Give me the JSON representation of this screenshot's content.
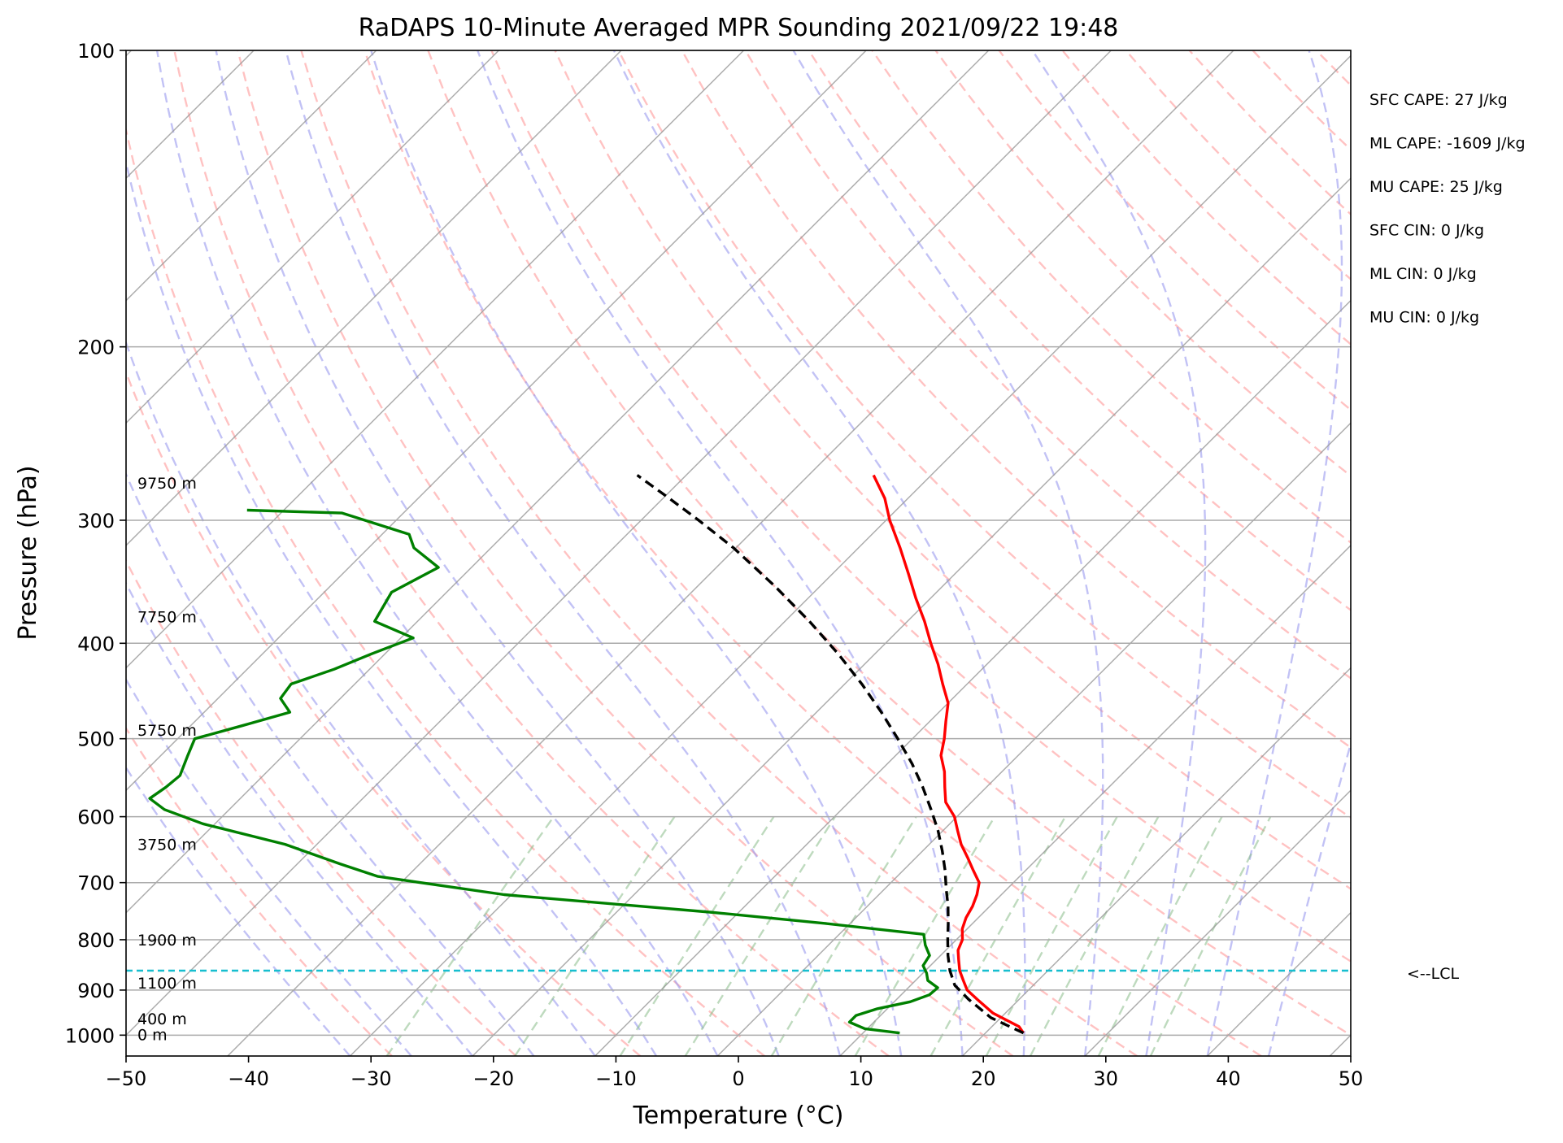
{
  "chart_data": {
    "type": "line",
    "title": "RaDAPS 10-Minute Averaged MPR Sounding 2021/09/22 19:48",
    "xlabel": "Temperature (°C)",
    "ylabel": "Pressure (hPa)",
    "xlim": [
      -50,
      50
    ],
    "ylim": [
      1050,
      100
    ],
    "y_scale": "log",
    "skew": "skew-T log-P",
    "x_ticks": [
      "−50",
      "−40",
      "−30",
      "−20",
      "−10",
      "0",
      "10",
      "20",
      "30",
      "40",
      "50"
    ],
    "y_ticks": [
      "100",
      "200",
      "300",
      "400",
      "500",
      "600",
      "700",
      "800",
      "900",
      "1000"
    ],
    "grid": true,
    "series": [
      {
        "color": "#ff0000",
        "pressure": [
          995,
          980,
          950,
          920,
          900,
          880,
          860,
          840,
          820,
          800,
          780,
          760,
          740,
          720,
          700,
          680,
          660,
          640,
          620,
          600,
          580,
          560,
          540,
          520,
          500,
          480,
          460,
          440,
          420,
          400,
          380,
          360,
          340,
          320,
          300,
          285,
          270
        ],
        "values": [
          23.1,
          22.2,
          19.0,
          16.6,
          15.0,
          13.9,
          12.8,
          11.9,
          11.0,
          10.5,
          9.6,
          9.0,
          8.6,
          8.0,
          7.2,
          5.7,
          4.2,
          2.6,
          1.2,
          -0.2,
          -2.1,
          -3.4,
          -4.7,
          -6.3,
          -7.4,
          -8.7,
          -10.0,
          -12.0,
          -14.0,
          -16.3,
          -18.6,
          -21.2,
          -23.8,
          -26.6,
          -29.7,
          -31.9,
          -34.7
        ]
      },
      {
        "color": "#008000",
        "pressure": [
          995,
          985,
          970,
          955,
          940,
          925,
          910,
          895,
          880,
          865,
          850,
          830,
          810,
          790,
          770,
          750,
          720,
          690,
          670,
          640,
          610,
          590,
          575,
          560,
          545,
          520,
          500,
          485,
          470,
          455,
          440,
          425,
          410,
          395,
          380,
          355,
          335,
          320,
          310,
          295,
          293
        ],
        "values": [
          13.0,
          9.8,
          8.0,
          8.0,
          9.2,
          11.3,
          12.3,
          12.4,
          11.0,
          10.3,
          9.4,
          9.1,
          7.9,
          6.9,
          -2.1,
          -12.4,
          -30.6,
          -42.4,
          -46.5,
          -52.6,
          -61.0,
          -65.3,
          -67.4,
          -67.0,
          -66.8,
          -67.8,
          -68.6,
          -65.8,
          -63.0,
          -64.9,
          -65.2,
          -62.9,
          -61.1,
          -59.0,
          -63.5,
          -64.5,
          -62.7,
          -66.3,
          -67.8,
          -75.0,
          -83.0
        ]
      },
      {
        "color": "#000000",
        "pressure": [
          995,
          960,
          920,
          890,
          860,
          830,
          800,
          770,
          740,
          710,
          680,
          650,
          620,
          590,
          560,
          530,
          500,
          470,
          440,
          410,
          380,
          350,
          320,
          300,
          285,
          270
        ],
        "values": [
          23.1,
          19.2,
          15.9,
          13.6,
          12.0,
          10.6,
          9.3,
          8.0,
          6.6,
          5.0,
          3.4,
          1.6,
          -0.4,
          -2.7,
          -5.2,
          -8.0,
          -11.2,
          -14.7,
          -18.6,
          -23.0,
          -28.0,
          -33.7,
          -40.2,
          -45.3,
          -49.5,
          -54.0
        ]
      }
    ],
    "lcl_pressure": 860,
    "height_labels": [
      {
        "label": "9750 m",
        "pressure": 275
      },
      {
        "label": "7750 m",
        "pressure": 376
      },
      {
        "label": "5750 m",
        "pressure": 490
      },
      {
        "label": "3750 m",
        "pressure": 640
      },
      {
        "label": "1900 m",
        "pressure": 800
      },
      {
        "label": "1100 m",
        "pressure": 885
      },
      {
        "label": "400 m",
        "pressure": 962
      },
      {
        "label": "0 m",
        "pressure": 998
      }
    ],
    "annotations": {
      "indices": [
        "SFC CAPE: 27 J/kg",
        "ML CAPE: -1609 J/kg",
        "MU CAPE: 25 J/kg",
        "SFC CIN: 0 J/kg",
        "ML CIN: 0 J/kg",
        "MU CIN: 0 J/kg"
      ],
      "lcl_label": "<--LCL"
    },
    "colors": {
      "temperature": "#ff0000",
      "dewpoint": "#008000",
      "parcel": "#000000",
      "lcl": "#17becf",
      "dry_adiabats": "#ff9999",
      "moist_adiabats": "#9999ee",
      "mixing_ratio": "#88bb88",
      "isotherms": "#999999"
    }
  }
}
